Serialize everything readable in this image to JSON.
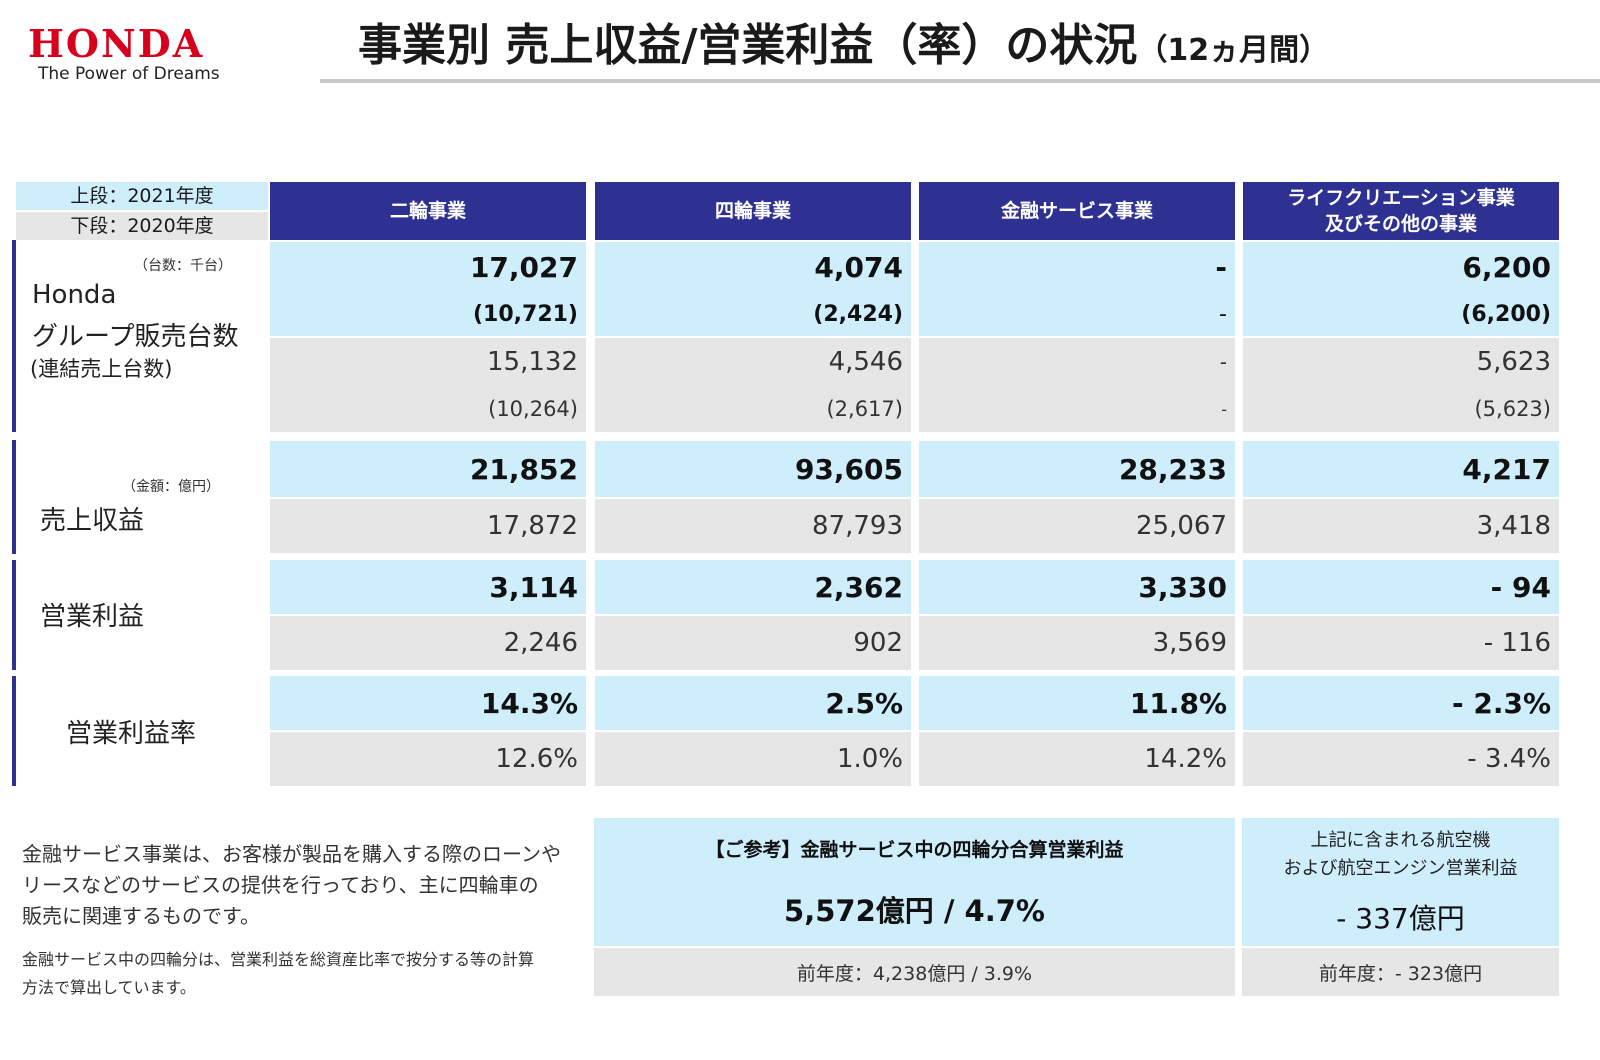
{
  "brand": {
    "logo": "HONDA",
    "tagline": "The Power of Dreams"
  },
  "title": {
    "main": "事業別 売上収益/営業利益（率）の状況",
    "period": "（12ヵ月間）"
  },
  "legend": {
    "upper": "上段：2021年度",
    "lower": "下段：2020年度"
  },
  "columns": [
    "二輪事業",
    "四輪事業",
    "金融サービス事業",
    "ライフクリエーション事業",
    "及びその他の事業"
  ],
  "sales_units": {
    "unit": "（台数：千台）",
    "label_line1": "Honda",
    "label_line2": "グループ販売台数",
    "label_line3": "(連結売上台数)",
    "y2021": [
      "17,027",
      "4,074",
      "-",
      "6,200"
    ],
    "y2021_consolidated": [
      "(10,721)",
      "(2,424)",
      "-",
      "(6,200)"
    ],
    "y2020": [
      "15,132",
      "4,546",
      "-",
      "5,623"
    ],
    "y2020_consolidated": [
      "(10,264)",
      "(2,617)",
      "-",
      "(5,623)"
    ]
  },
  "revenue": {
    "unit": "（金額：億円）",
    "label": "売上収益",
    "y2021": [
      "21,852",
      "93,605",
      "28,233",
      "4,217"
    ],
    "y2020": [
      "17,872",
      "87,793",
      "25,067",
      "3,418"
    ]
  },
  "operating_profit": {
    "label": "営業利益",
    "y2021": [
      "3,114",
      "2,362",
      "3,330",
      "- 94"
    ],
    "y2020": [
      "2,246",
      "902",
      "3,569",
      "- 116"
    ]
  },
  "operating_margin": {
    "label": "営業利益率",
    "y2021": [
      "14.3%",
      "2.5%",
      "11.8%",
      "- 2.3%"
    ],
    "y2020": [
      "12.6%",
      "1.0%",
      "14.2%",
      "- 3.4%"
    ]
  },
  "notes": {
    "line1": "金融サービス事業は、お客様が製品を購入する際のローンや",
    "line2": "リースなどのサービスの提供を行っており、主に四輪車の",
    "line3": "販売に関連するものです。",
    "line4": "金融サービス中の四輪分は、営業利益を総資産比率で按分する等の計算",
    "line5": "方法で算出しています。"
  },
  "reference_auto": {
    "title": "【ご参考】金融サービス中の四輪分合算営業利益",
    "value": "5,572億円 / 4.7%",
    "prior": "前年度：4,238億円 / 3.9%"
  },
  "reference_aircraft": {
    "title_line1": "上記に含まれる航空機",
    "title_line2": "および航空エンジン営業利益",
    "value": "- 337億円",
    "prior": "前年度：- 323億円"
  }
}
